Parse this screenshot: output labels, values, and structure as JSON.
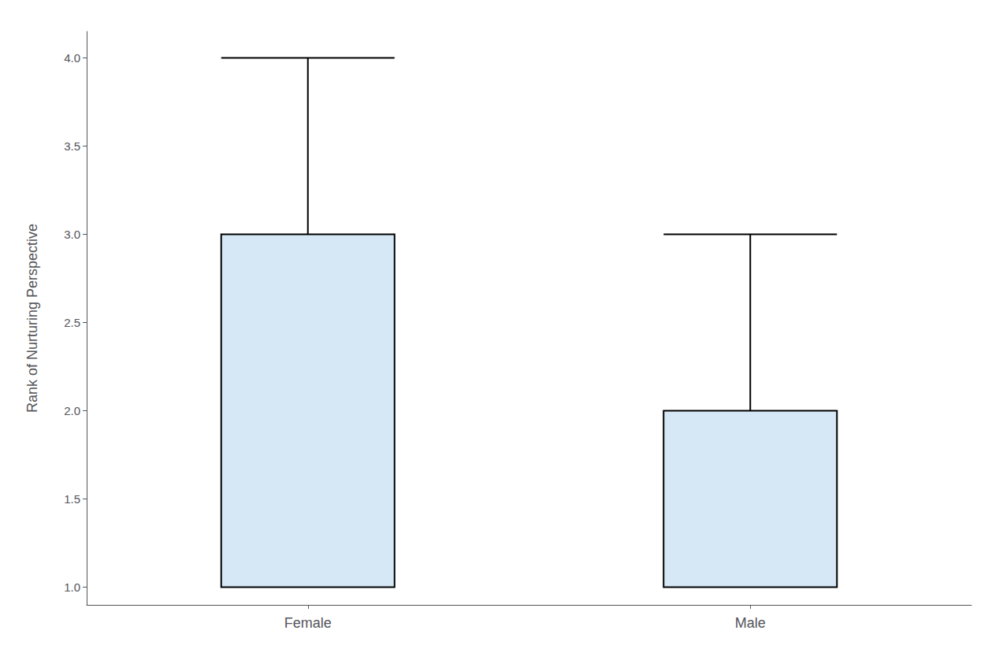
{
  "chart_data": {
    "type": "boxplot",
    "categories": [
      "Female",
      "Male"
    ],
    "values": [
      [
        1.0,
        1.0,
        3.0,
        3.0,
        4.0
      ],
      [
        1.0,
        1.0,
        1.0,
        2.0,
        3.0
      ]
    ],
    "color": "#d6e8f5",
    "ylabel": "Rank of Nurturing Perspective",
    "ylim": [
      0.9,
      4.15
    ],
    "yticks": [
      {
        "value": 1,
        "label": "1.0"
      },
      1.5,
      {
        "value": 2,
        "label": "2.0"
      },
      2.5,
      {
        "value": 3,
        "label": "3.0"
      },
      3.5,
      {
        "value": 4,
        "label": "4.0"
      }
    ],
    "grid": false
  }
}
